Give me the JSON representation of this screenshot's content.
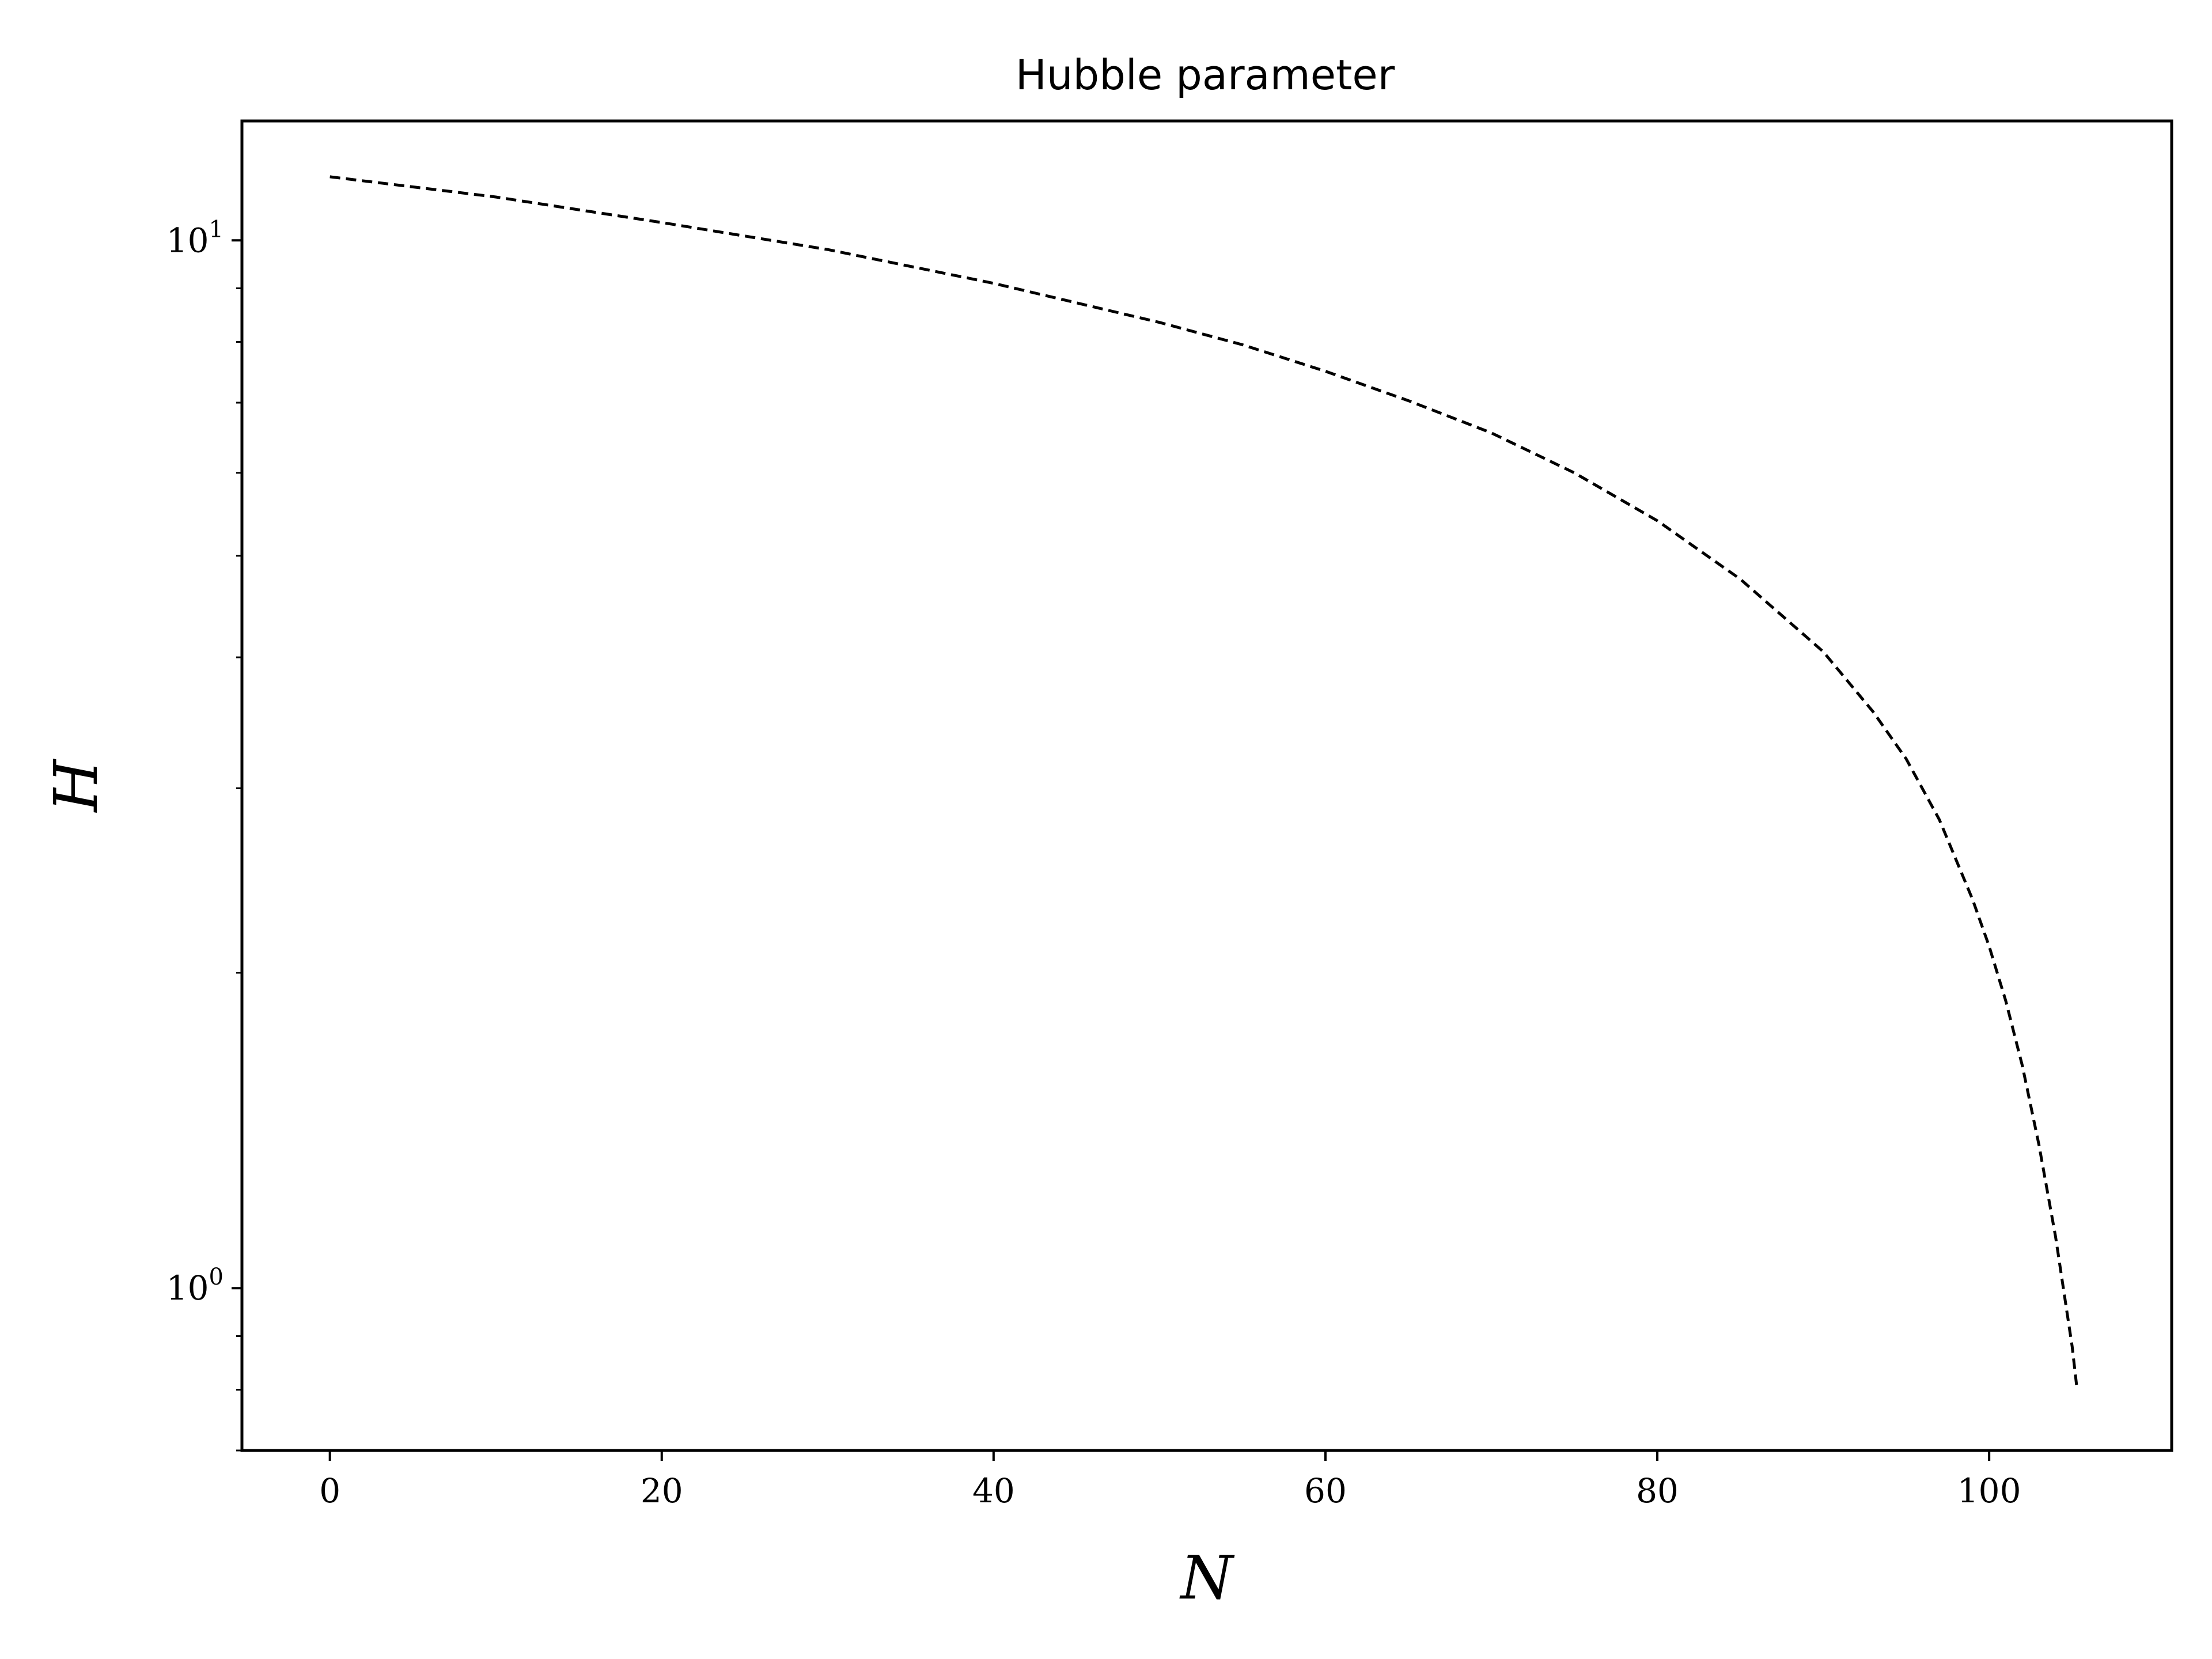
{
  "chart_data": {
    "type": "line",
    "title": "Hubble parameter",
    "xlabel": "N",
    "ylabel": "H",
    "xscale": "linear",
    "yscale": "log",
    "xlim": [
      -5.3,
      111
    ],
    "ylim": [
      0.7,
      13.0
    ],
    "xticks": [
      0,
      20,
      40,
      60,
      80,
      100
    ],
    "yticks": [
      {
        "value": 1,
        "base": "10",
        "exponent": "0"
      },
      {
        "value": 10,
        "base": "10",
        "exponent": "1"
      }
    ],
    "grid": false,
    "legend": "none",
    "series": [
      {
        "line_style": "dashed",
        "color": "#000000",
        "x": [
          0,
          10,
          20,
          30,
          40,
          50,
          55,
          60,
          65,
          70,
          75,
          80,
          85,
          90,
          93,
          95,
          97,
          99,
          100,
          101,
          102,
          103,
          104,
          105,
          105.3
        ],
        "y": [
          11.5,
          11.0,
          10.4,
          9.8,
          9.1,
          8.35,
          7.95,
          7.5,
          7.03,
          6.55,
          6.0,
          5.4,
          4.75,
          4.05,
          3.55,
          3.2,
          2.8,
          2.35,
          2.12,
          1.88,
          1.63,
          1.37,
          1.12,
          0.88,
          0.8
        ]
      }
    ]
  }
}
